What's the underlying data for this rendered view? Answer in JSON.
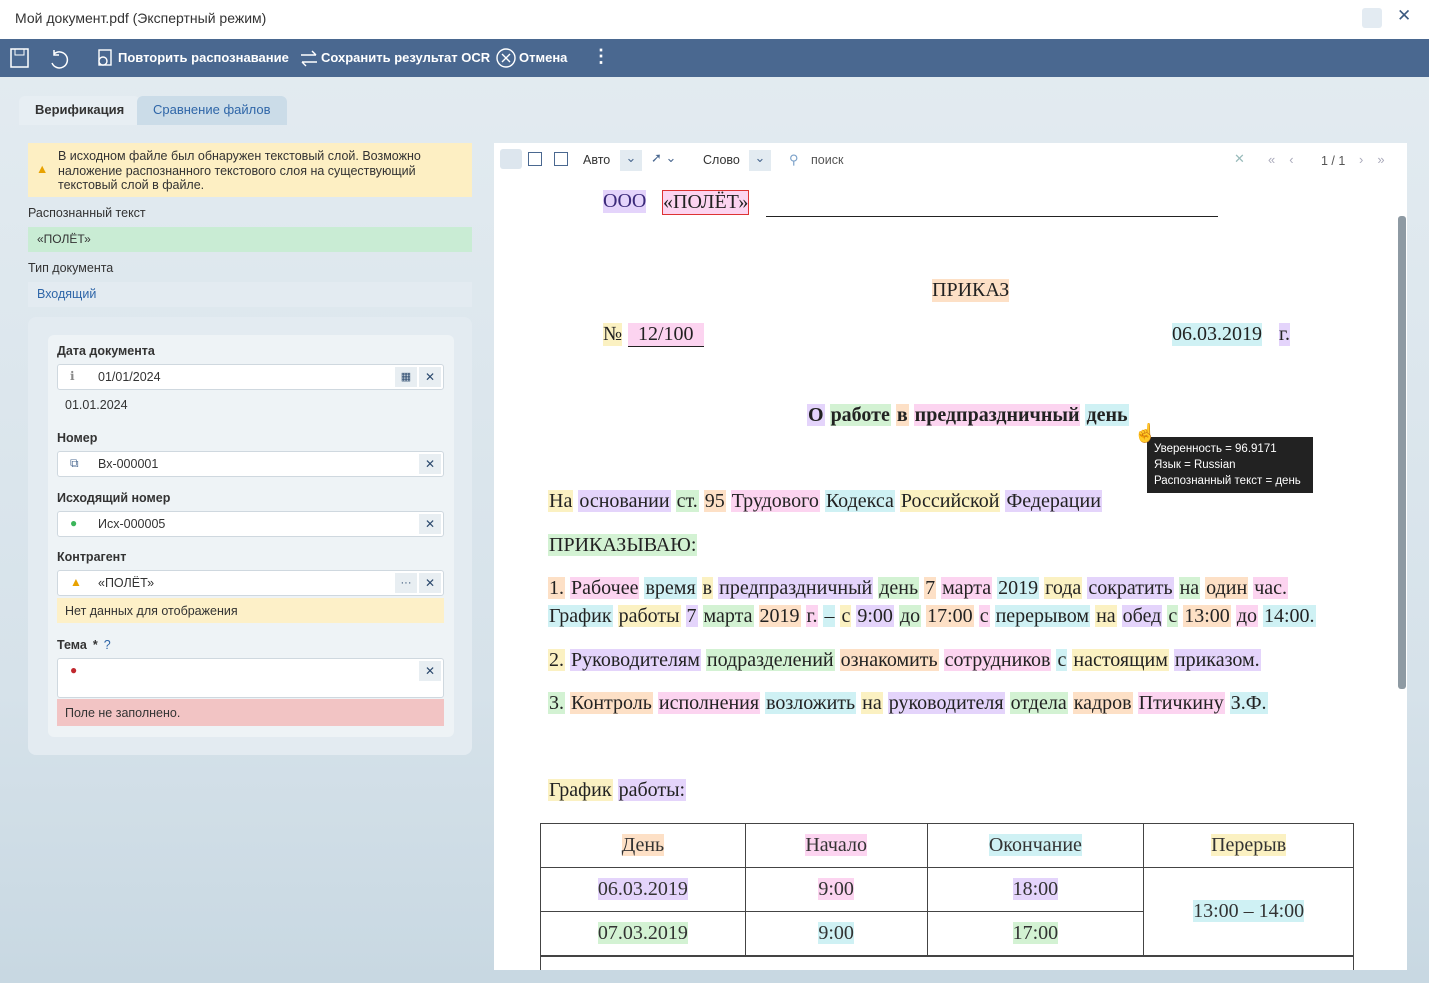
{
  "window": {
    "title": "Мой документ.pdf (Экспертный режим)"
  },
  "toolbar": {
    "buttons": [
      "Повторить распознавание",
      "Сохранить результат OCR",
      "Отмена"
    ]
  },
  "tabs": [
    "Верификация",
    "Сравнение файлов"
  ],
  "warning": "В исходном файле был обнаружен текстовый слой. Возможно наложение распознанного текстового слоя на существующий текстовый слой в файле.",
  "recognized": {
    "label": "Распознанный текст",
    "value": "«ПОЛЁТ»"
  },
  "doc_type": {
    "label": "Тип документа",
    "value": "Входящий"
  },
  "fields": [
    {
      "label": "Дата документа",
      "value": "01/01/2024",
      "hint": "01.01.2024"
    },
    {
      "label": "Номер",
      "value": "Вх-000001"
    },
    {
      "label": "Исходящий номер",
      "value": "Исх-000005"
    },
    {
      "label": "Контрагент",
      "value": "«ПОЛЁТ»",
      "hint": "Нет данных для отображения"
    },
    {
      "label": "Тема",
      "required": "*",
      "error": "Поле не заполнено."
    }
  ],
  "viewer": {
    "mode": "Авто",
    "unit": "Слово",
    "search": "поиск",
    "page": "1 / 1"
  },
  "document": {
    "org": "ООО",
    "org_name": "«ПОЛЁТ»",
    "heading": "ПРИКАЗ",
    "number_sign": "№",
    "number": "12/100",
    "date": "06.03.2019",
    "year_suffix": "г.",
    "subject": [
      "О",
      "работе",
      "в",
      "предпраздничный",
      "день"
    ],
    "paragraphs": [
      [
        "На",
        "основании",
        "ст.",
        "95",
        "Трудового",
        "Кодекса",
        "Российской",
        "Федерации"
      ],
      [
        "ПРИКАЗЫВАЮ:"
      ],
      [
        "1.",
        "Рабочее",
        "время",
        "в",
        "предпраздничный",
        "день",
        "7",
        "марта",
        "2019",
        "года",
        "сократить",
        "на",
        "один",
        "час."
      ],
      [
        "График",
        "работы",
        "7",
        "марта",
        "2019",
        "г.",
        "–",
        "с",
        "9:00",
        "до",
        "17:00",
        "с",
        "перерывом",
        "на",
        "обед",
        "с",
        "13:00",
        "до",
        "14:00."
      ],
      [
        "2.",
        "Руководителям",
        "подразделений",
        "ознакомить",
        "сотрудников",
        "с",
        "настоящим",
        "приказом."
      ],
      [
        "3.",
        "Контроль",
        "исполнения",
        "возложить",
        "на",
        "руководителя",
        "отдела",
        "кадров",
        "Птичкину",
        "З.Ф."
      ],
      [
        "График",
        "работы:"
      ]
    ],
    "table": {
      "headers": [
        "День",
        "Начало",
        "Окончание",
        "Перерыв"
      ],
      "rows": [
        [
          "06.03.2019",
          "9:00",
          "18:00"
        ],
        [
          "07.03.2019",
          "9:00",
          "17:00"
        ]
      ],
      "break": "13:00 – 14:00"
    }
  },
  "tooltip": [
    "Уверенность = 96.9171",
    "Язык = Russian",
    "Распознанный текст = день"
  ]
}
